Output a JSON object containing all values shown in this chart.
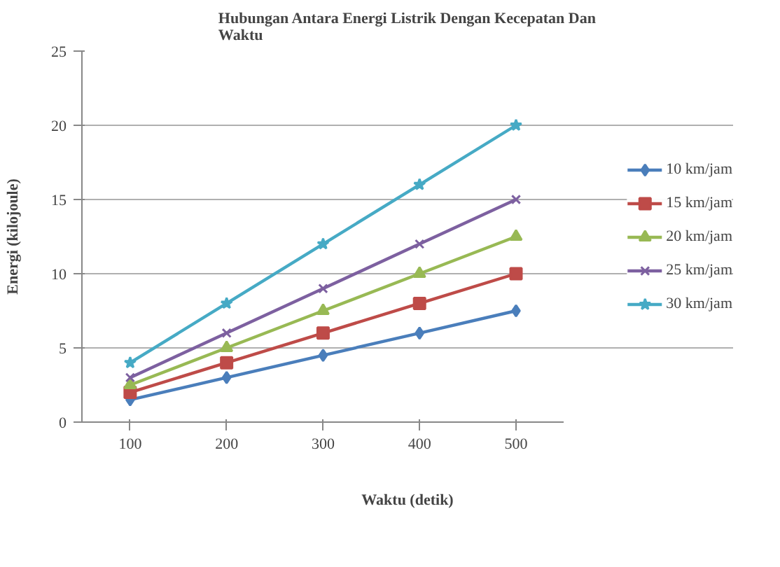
{
  "chart_data": {
    "type": "line",
    "title": "Hubungan Antara Energi Listrik Dengan Kecepatan Dan Waktu",
    "xlabel": "Waktu (detik)",
    "ylabel": "Energi (kilojoule)",
    "categories": [
      "100",
      "200",
      "300",
      "400",
      "500"
    ],
    "ylim": [
      0,
      25
    ],
    "yticks": [
      0,
      5,
      10,
      15,
      20,
      25
    ],
    "grid": "y",
    "legend": "right",
    "series": [
      {
        "name": "10 km/jam",
        "color": "#4a7ebb",
        "marker": "diamond",
        "values": [
          1.5,
          3,
          4.5,
          6,
          7.5
        ]
      },
      {
        "name": "15 km/jam",
        "color": "#be4b48",
        "marker": "square",
        "values": [
          2,
          4,
          6,
          8,
          10
        ]
      },
      {
        "name": "20 km/jam",
        "color": "#98b954",
        "marker": "triangle",
        "values": [
          2.5,
          5,
          7.5,
          10,
          12.5
        ]
      },
      {
        "name": "25 km/jam",
        "color": "#7d60a0",
        "marker": "cross",
        "values": [
          3,
          6,
          9,
          12,
          15
        ]
      },
      {
        "name": "30 km/jam",
        "color": "#46aac5",
        "marker": "star",
        "values": [
          4,
          8,
          12,
          16,
          20
        ]
      }
    ]
  }
}
